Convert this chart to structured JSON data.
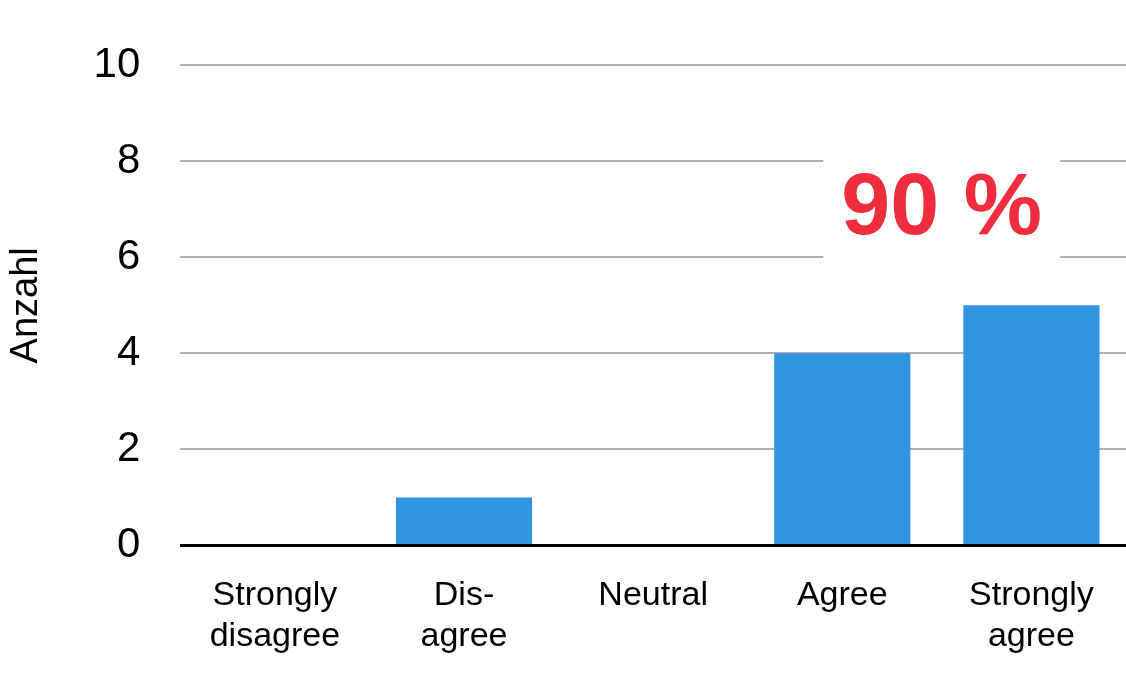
{
  "chart_data": {
    "type": "bar",
    "ylabel": "Anzahl",
    "categories": [
      "Strongly\ndisagree",
      "Dis-\nagree",
      "Neutral",
      "Agree",
      "Strongly\nagree"
    ],
    "values": [
      0,
      1,
      0,
      4,
      5
    ],
    "color": "#2f95e0",
    "ylim": [
      0,
      10
    ],
    "yticks": [
      0,
      2,
      4,
      6,
      8,
      10
    ],
    "grid": "y",
    "legend": false,
    "annotations": [
      "90 %"
    ]
  }
}
